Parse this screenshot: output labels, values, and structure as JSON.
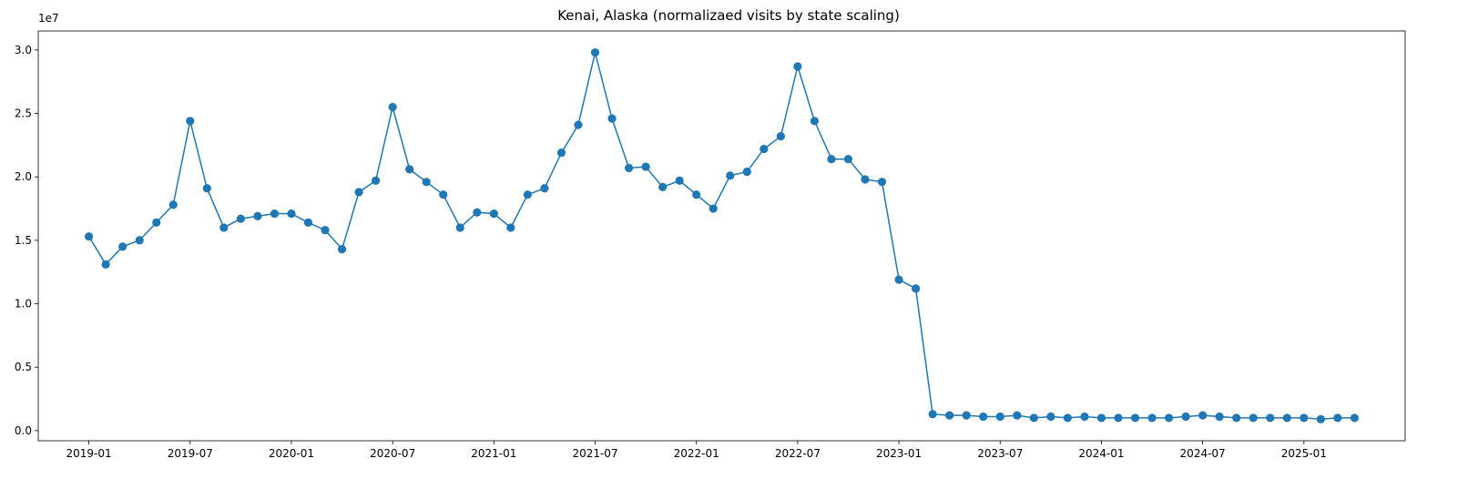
{
  "chart_data": {
    "type": "line",
    "title": "Kenai, Alaska (normalizaed visits by state scaling)",
    "xlabel": "",
    "ylabel": "",
    "y_offset_label": "1e7",
    "y_scale": 10000000,
    "ylim": [
      -0.08,
      3.15
    ],
    "xlim": [
      "2018-10-01",
      "2025-07-01"
    ],
    "grid": false,
    "legend": "none",
    "marker": "circle",
    "color": "#1f77b4",
    "x_ticks": [
      "2019-01",
      "2019-07",
      "2020-01",
      "2020-07",
      "2021-01",
      "2021-07",
      "2022-01",
      "2022-07",
      "2023-01",
      "2023-07",
      "2024-01",
      "2024-07",
      "2025-01"
    ],
    "y_ticks": [
      "0.0",
      "0.5",
      "1.0",
      "1.5",
      "2.0",
      "2.5",
      "3.0"
    ],
    "x": [
      "2019-01",
      "2019-02",
      "2019-03",
      "2019-04",
      "2019-05",
      "2019-06",
      "2019-07",
      "2019-08",
      "2019-09",
      "2019-10",
      "2019-11",
      "2019-12",
      "2020-01",
      "2020-02",
      "2020-03",
      "2020-04",
      "2020-05",
      "2020-06",
      "2020-07",
      "2020-08",
      "2020-09",
      "2020-10",
      "2020-11",
      "2020-12",
      "2021-01",
      "2021-02",
      "2021-03",
      "2021-04",
      "2021-05",
      "2021-06",
      "2021-07",
      "2021-08",
      "2021-09",
      "2021-10",
      "2021-11",
      "2021-12",
      "2022-01",
      "2022-02",
      "2022-03",
      "2022-04",
      "2022-05",
      "2022-06",
      "2022-07",
      "2022-08",
      "2022-09",
      "2022-10",
      "2022-11",
      "2022-12",
      "2023-01",
      "2023-02",
      "2023-03",
      "2023-04",
      "2023-05",
      "2023-06",
      "2023-07",
      "2023-08",
      "2023-09",
      "2023-10",
      "2023-11",
      "2023-12",
      "2024-01",
      "2024-02",
      "2024-03",
      "2024-04",
      "2024-05",
      "2024-06",
      "2024-07",
      "2024-08",
      "2024-09",
      "2024-10",
      "2024-11",
      "2024-12",
      "2025-01",
      "2025-02",
      "2025-03",
      "2025-04"
    ],
    "values": [
      1.53,
      1.31,
      1.45,
      1.5,
      1.64,
      1.78,
      2.44,
      1.91,
      1.6,
      1.67,
      1.69,
      1.71,
      1.71,
      1.64,
      1.58,
      1.43,
      1.88,
      1.97,
      2.55,
      2.06,
      1.96,
      1.86,
      1.6,
      1.72,
      1.71,
      1.6,
      1.86,
      1.91,
      2.19,
      2.41,
      2.98,
      2.46,
      2.07,
      2.08,
      1.92,
      1.97,
      1.86,
      1.75,
      2.01,
      2.04,
      2.22,
      2.32,
      2.87,
      2.44,
      2.14,
      2.14,
      1.98,
      1.96,
      1.19,
      1.12,
      0.13,
      0.12,
      0.12,
      0.11,
      0.11,
      0.12,
      0.1,
      0.11,
      0.1,
      0.11,
      0.1,
      0.1,
      0.1,
      0.1,
      0.1,
      0.11,
      0.12,
      0.11,
      0.1,
      0.1,
      0.1,
      0.1,
      0.1,
      0.09,
      0.1,
      0.1
    ]
  }
}
